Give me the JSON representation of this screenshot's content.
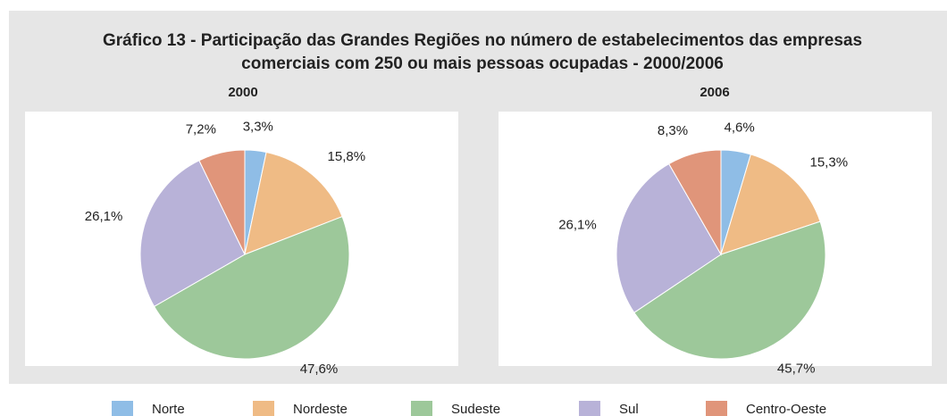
{
  "title": "Gráfico 13 - Participação das Grandes Regiões no número de estabelecimentos das empresas",
  "subtitle": "comerciais com 250 ou mais pessoas ocupadas - 2000/2006",
  "chart_data": [
    {
      "type": "pie",
      "title": "2000",
      "categories": [
        "Norte",
        "Nordeste",
        "Sudeste",
        "Sul",
        "Centro-Oeste"
      ],
      "values": [
        3.3,
        15.8,
        47.6,
        26.1,
        7.2
      ],
      "value_labels": [
        "3,3%",
        "15,8%",
        "47,6%",
        "26,1%",
        "7,2%"
      ],
      "colors": [
        "#8fbde6",
        "#efbb85",
        "#9dc89a",
        "#b8b2d8",
        "#e0957a"
      ]
    },
    {
      "type": "pie",
      "title": "2006",
      "categories": [
        "Norte",
        "Nordeste",
        "Sudeste",
        "Sul",
        "Centro-Oeste"
      ],
      "values": [
        4.6,
        15.3,
        45.7,
        26.1,
        8.3
      ],
      "value_labels": [
        "4,6%",
        "15,3%",
        "45,7%",
        "26,1%",
        "8,3%"
      ],
      "colors": [
        "#8fbde6",
        "#efbb85",
        "#9dc89a",
        "#b8b2d8",
        "#e0957a"
      ]
    }
  ]
}
